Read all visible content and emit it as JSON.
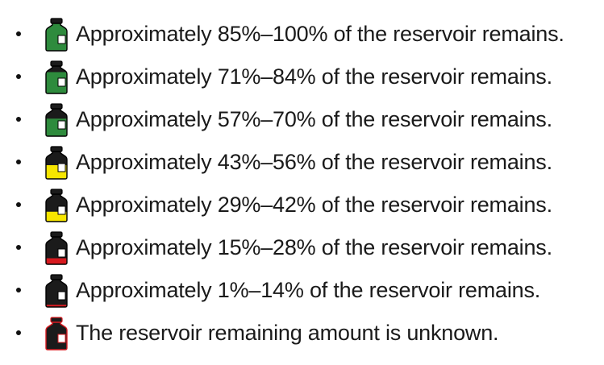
{
  "colors": {
    "green": "#2e8b3d",
    "yellow": "#f7e600",
    "red": "#d7191f",
    "dark": "#1b1b1b",
    "outline": "#000000",
    "unknown_outline": "#d7191f"
  },
  "items": [
    {
      "label": "Approximately 85%–100% of the reservoir remains.",
      "icon": "reservoir-level-icon",
      "fill_level": 1.0,
      "fill_color": "green",
      "outline_color": "outline"
    },
    {
      "label": "Approximately 71%–84% of the reservoir remains.",
      "icon": "reservoir-level-icon",
      "fill_level": 0.78,
      "fill_color": "green",
      "outline_color": "outline"
    },
    {
      "label": "Approximately 57%–70% of the reservoir remains.",
      "icon": "reservoir-level-icon",
      "fill_level": 0.64,
      "fill_color": "green",
      "outline_color": "outline"
    },
    {
      "label": "Approximately 43%–56% of the reservoir remains.",
      "icon": "reservoir-level-icon",
      "fill_level": 0.5,
      "fill_color": "yellow",
      "outline_color": "outline"
    },
    {
      "label": "Approximately 29%–42% of the reservoir remains.",
      "icon": "reservoir-level-icon",
      "fill_level": 0.36,
      "fill_color": "yellow",
      "outline_color": "outline"
    },
    {
      "label": "Approximately 15%–28% of the reservoir remains.",
      "icon": "reservoir-level-icon",
      "fill_level": 0.22,
      "fill_color": "red",
      "outline_color": "outline"
    },
    {
      "label": "Approximately 1%–14% of the reservoir remains.",
      "icon": "reservoir-level-icon",
      "fill_level": 0.08,
      "fill_color": "red",
      "outline_color": "outline"
    },
    {
      "label": "The reservoir remaining amount is unknown.",
      "icon": "reservoir-unknown-icon",
      "fill_level": 0,
      "fill_color": "red",
      "outline_color": "unknown_outline"
    }
  ]
}
